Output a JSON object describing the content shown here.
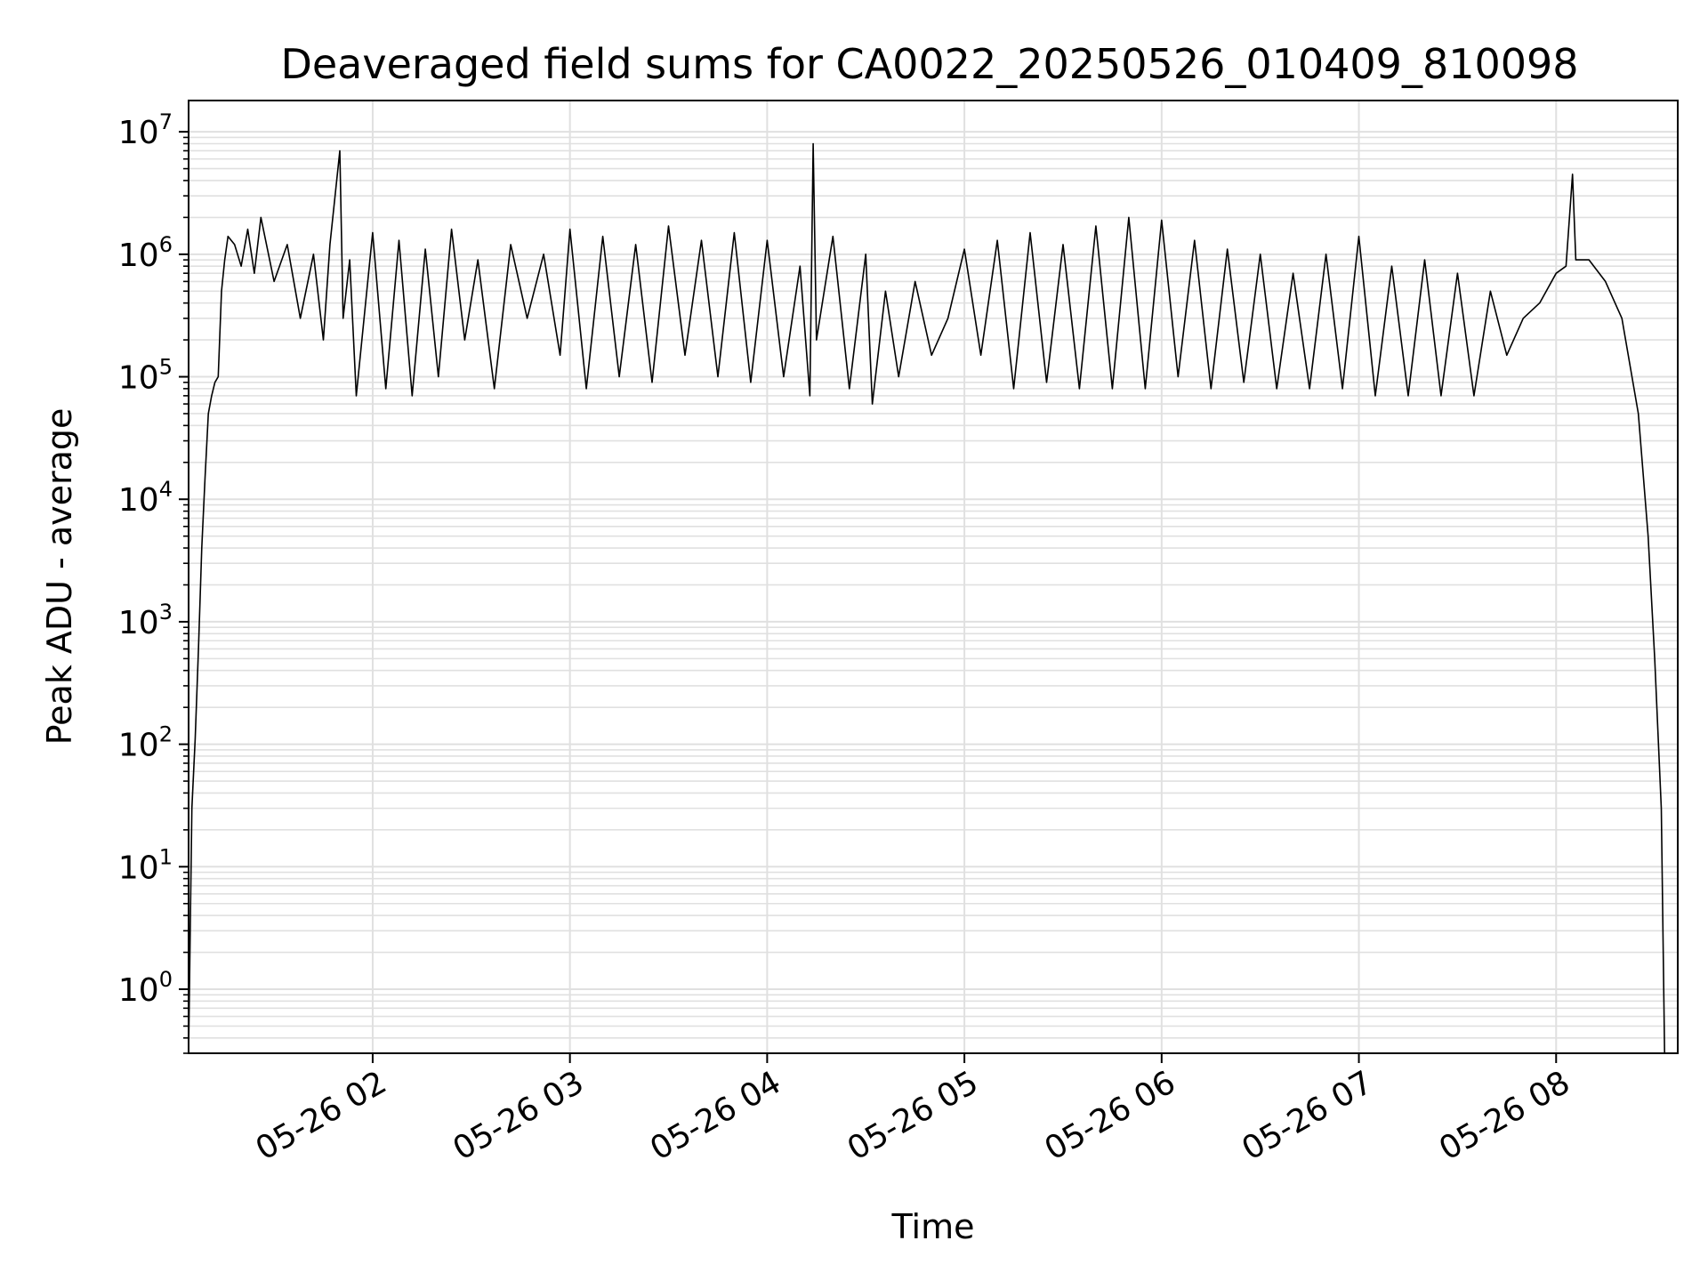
{
  "chart_data": {
    "type": "line",
    "title": "Deaveraged field sums for CA0022_20250526_010409_810098",
    "xlabel": "Time",
    "ylabel": "Peak ADU - average",
    "yscale": "log",
    "ylim": [
      0.3,
      18000000
    ],
    "xlim": [
      "05-26 01:04",
      "05-26 08:37"
    ],
    "grid": true,
    "line_color": "#000000",
    "grid_color": "#e0e0e0",
    "x_ticks": [
      {
        "t": "05-26 02:00",
        "label": "05-26 02"
      },
      {
        "t": "05-26 03:00",
        "label": "05-26 03"
      },
      {
        "t": "05-26 04:00",
        "label": "05-26 04"
      },
      {
        "t": "05-26 05:00",
        "label": "05-26 05"
      },
      {
        "t": "05-26 06:00",
        "label": "05-26 06"
      },
      {
        "t": "05-26 07:00",
        "label": "05-26 07"
      },
      {
        "t": "05-26 08:00",
        "label": "05-26 08"
      }
    ],
    "y_ticks": [
      {
        "value": 1,
        "base": "10",
        "exp": "0"
      },
      {
        "value": 10,
        "base": "10",
        "exp": "1"
      },
      {
        "value": 100,
        "base": "10",
        "exp": "2"
      },
      {
        "value": 1000,
        "base": "10",
        "exp": "3"
      },
      {
        "value": 10000,
        "base": "10",
        "exp": "4"
      },
      {
        "value": 100000,
        "base": "10",
        "exp": "5"
      },
      {
        "value": 1000000,
        "base": "10",
        "exp": "6"
      },
      {
        "value": 10000000,
        "base": "10",
        "exp": "7"
      }
    ],
    "series": [
      {
        "points": [
          [
            "05-26 01:04",
            0.3
          ],
          [
            "05-26 01:05",
            30
          ],
          [
            "05-26 01:06",
            110
          ],
          [
            "05-26 01:07",
            600
          ],
          [
            "05-26 01:08",
            4000
          ],
          [
            "05-26 01:09",
            15000
          ],
          [
            "05-26 01:10",
            50000
          ],
          [
            "05-26 01:11",
            70000
          ],
          [
            "05-26 01:12",
            90000
          ],
          [
            "05-26 01:13",
            100000
          ],
          [
            "05-26 01:14",
            500000
          ],
          [
            "05-26 01:15",
            900000
          ],
          [
            "05-26 01:16",
            1400000
          ],
          [
            "05-26 01:18",
            1200000
          ],
          [
            "05-26 01:20",
            800000
          ],
          [
            "05-26 01:22",
            1600000
          ],
          [
            "05-26 01:24",
            700000
          ],
          [
            "05-26 01:26",
            2000000
          ],
          [
            "05-26 01:30",
            600000
          ],
          [
            "05-26 01:34",
            1200000
          ],
          [
            "05-26 01:38",
            300000
          ],
          [
            "05-26 01:42",
            1000000
          ],
          [
            "05-26 01:45",
            200000
          ],
          [
            "05-26 01:47",
            1200000
          ],
          [
            "05-26 01:50",
            7000000
          ],
          [
            "05-26 01:51",
            300000
          ],
          [
            "05-26 01:53",
            900000
          ],
          [
            "05-26 01:55",
            70000
          ],
          [
            "05-26 02:00",
            1500000
          ],
          [
            "05-26 02:04",
            80000
          ],
          [
            "05-26 02:08",
            1300000
          ],
          [
            "05-26 02:12",
            70000
          ],
          [
            "05-26 02:16",
            1100000
          ],
          [
            "05-26 02:20",
            100000
          ],
          [
            "05-26 02:24",
            1600000
          ],
          [
            "05-26 02:28",
            200000
          ],
          [
            "05-26 02:32",
            900000
          ],
          [
            "05-26 02:37",
            80000
          ],
          [
            "05-26 02:42",
            1200000
          ],
          [
            "05-26 02:47",
            300000
          ],
          [
            "05-26 02:52",
            1000000
          ],
          [
            "05-26 02:57",
            150000
          ],
          [
            "05-26 03:00",
            1600000
          ],
          [
            "05-26 03:05",
            80000
          ],
          [
            "05-26 03:10",
            1400000
          ],
          [
            "05-26 03:15",
            100000
          ],
          [
            "05-26 03:20",
            1200000
          ],
          [
            "05-26 03:25",
            90000
          ],
          [
            "05-26 03:30",
            1700000
          ],
          [
            "05-26 03:35",
            150000
          ],
          [
            "05-26 03:40",
            1300000
          ],
          [
            "05-26 03:45",
            100000
          ],
          [
            "05-26 03:50",
            1500000
          ],
          [
            "05-26 03:55",
            90000
          ],
          [
            "05-26 04:00",
            1300000
          ],
          [
            "05-26 04:05",
            100000
          ],
          [
            "05-26 04:10",
            800000
          ],
          [
            "05-26 04:13",
            70000
          ],
          [
            "05-26 04:14",
            8000000
          ],
          [
            "05-26 04:15",
            200000
          ],
          [
            "05-26 04:20",
            1400000
          ],
          [
            "05-26 04:25",
            80000
          ],
          [
            "05-26 04:30",
            1000000
          ],
          [
            "05-26 04:32",
            60000
          ],
          [
            "05-26 04:36",
            500000
          ],
          [
            "05-26 04:40",
            100000
          ],
          [
            "05-26 04:45",
            600000
          ],
          [
            "05-26 04:50",
            150000
          ],
          [
            "05-26 04:55",
            300000
          ],
          [
            "05-26 05:00",
            1100000
          ],
          [
            "05-26 05:05",
            150000
          ],
          [
            "05-26 05:10",
            1300000
          ],
          [
            "05-26 05:15",
            80000
          ],
          [
            "05-26 05:20",
            1500000
          ],
          [
            "05-26 05:25",
            90000
          ],
          [
            "05-26 05:30",
            1200000
          ],
          [
            "05-26 05:35",
            80000
          ],
          [
            "05-26 05:40",
            1700000
          ],
          [
            "05-26 05:45",
            80000
          ],
          [
            "05-26 05:50",
            2000000
          ],
          [
            "05-26 05:55",
            80000
          ],
          [
            "05-26 06:00",
            1900000
          ],
          [
            "05-26 06:05",
            100000
          ],
          [
            "05-26 06:10",
            1300000
          ],
          [
            "05-26 06:15",
            80000
          ],
          [
            "05-26 06:20",
            1100000
          ],
          [
            "05-26 06:25",
            90000
          ],
          [
            "05-26 06:30",
            1000000
          ],
          [
            "05-26 06:35",
            80000
          ],
          [
            "05-26 06:40",
            700000
          ],
          [
            "05-26 06:45",
            80000
          ],
          [
            "05-26 06:50",
            1000000
          ],
          [
            "05-26 06:55",
            80000
          ],
          [
            "05-26 07:00",
            1400000
          ],
          [
            "05-26 07:05",
            70000
          ],
          [
            "05-26 07:10",
            800000
          ],
          [
            "05-26 07:15",
            70000
          ],
          [
            "05-26 07:20",
            900000
          ],
          [
            "05-26 07:25",
            70000
          ],
          [
            "05-26 07:30",
            700000
          ],
          [
            "05-26 07:35",
            70000
          ],
          [
            "05-26 07:40",
            500000
          ],
          [
            "05-26 07:45",
            150000
          ],
          [
            "05-26 07:50",
            300000
          ],
          [
            "05-26 07:55",
            400000
          ],
          [
            "05-26 08:00",
            700000
          ],
          [
            "05-26 08:03",
            800000
          ],
          [
            "05-26 08:05",
            4500000
          ],
          [
            "05-26 08:06",
            900000
          ],
          [
            "05-26 08:10",
            900000
          ],
          [
            "05-26 08:15",
            600000
          ],
          [
            "05-26 08:20",
            300000
          ],
          [
            "05-26 08:25",
            50000
          ],
          [
            "05-26 08:28",
            5000
          ],
          [
            "05-26 08:30",
            500
          ],
          [
            "05-26 08:32",
            30
          ],
          [
            "05-26 08:33",
            0.3
          ]
        ]
      }
    ]
  }
}
